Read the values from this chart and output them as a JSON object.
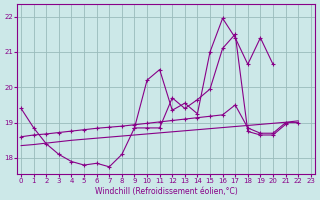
{
  "xlabel": "Windchill (Refroidissement éolien,°C)",
  "background_color": "#cce8e8",
  "line_color": "#880088",
  "grid_color": "#99bbbb",
  "xlim": [
    -0.3,
    23.3
  ],
  "ylim": [
    17.55,
    22.35
  ],
  "yticks": [
    18,
    19,
    20,
    21,
    22
  ],
  "xticks": [
    0,
    1,
    2,
    3,
    4,
    5,
    6,
    7,
    8,
    9,
    10,
    11,
    12,
    13,
    14,
    15,
    16,
    17,
    18,
    19,
    20,
    21,
    22,
    23
  ],
  "lineA_x": [
    0,
    1,
    2,
    3,
    4,
    5,
    6,
    7,
    8,
    9,
    10,
    11,
    12,
    13,
    14,
    15,
    16,
    17,
    18,
    19,
    20,
    21
  ],
  "lineA_y": [
    19.4,
    18.85,
    18.4,
    18.1,
    17.9,
    17.8,
    17.85,
    17.75,
    18.1,
    18.85,
    18.85,
    18.85,
    19.7,
    19.4,
    19.65,
    19.95,
    21.1,
    21.5,
    18.75,
    18.65,
    18.65,
    18.95
  ],
  "lineB_x": [
    9,
    10,
    11,
    12,
    13,
    14,
    15,
    16,
    17,
    18,
    19,
    20
  ],
  "lineB_y": [
    18.85,
    20.2,
    20.5,
    19.35,
    19.55,
    19.25,
    21.0,
    21.95,
    21.4,
    20.65,
    21.4,
    20.65
  ],
  "lineC_x": [
    0,
    1,
    2,
    3,
    4,
    5,
    6,
    7,
    8,
    9,
    10,
    11,
    12,
    13,
    14,
    15,
    16,
    17,
    18,
    19,
    20,
    21,
    22
  ],
  "lineC_y": [
    18.6,
    18.65,
    18.68,
    18.72,
    18.76,
    18.8,
    18.84,
    18.87,
    18.9,
    18.94,
    18.98,
    19.02,
    19.06,
    19.1,
    19.14,
    19.18,
    19.22,
    19.5,
    18.85,
    18.7,
    18.7,
    19.0,
    19.0
  ],
  "lineD_x": [
    0,
    1,
    2,
    3,
    4,
    5,
    6,
    7,
    8,
    9,
    10,
    11,
    12,
    13,
    14,
    15,
    16,
    17,
    18,
    19,
    20,
    21,
    22
  ],
  "lineD_y": [
    18.35,
    18.38,
    18.42,
    18.46,
    18.5,
    18.53,
    18.56,
    18.59,
    18.62,
    18.65,
    18.68,
    18.71,
    18.74,
    18.77,
    18.8,
    18.83,
    18.86,
    18.89,
    18.92,
    18.95,
    18.98,
    19.01,
    19.05
  ]
}
